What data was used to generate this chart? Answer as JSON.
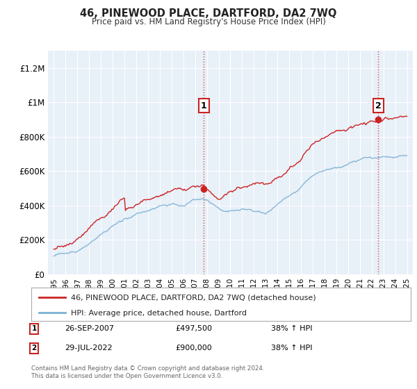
{
  "title": "46, PINEWOOD PLACE, DARTFORD, DA2 7WQ",
  "subtitle": "Price paid vs. HM Land Registry's House Price Index (HPI)",
  "hpi_color": "#7ab0d4",
  "price_color": "#cc2222",
  "dashed_color": "#cc2222",
  "background_color": "#ffffff",
  "plot_bg_color": "#e8f0f8",
  "grid_color": "#ffffff",
  "ylim": [
    0,
    1300000
  ],
  "yticks": [
    0,
    200000,
    400000,
    600000,
    800000,
    1000000,
    1200000
  ],
  "ytick_labels": [
    "£0",
    "£200K",
    "£400K",
    "£600K",
    "£800K",
    "£1M",
    "£1.2M"
  ],
  "legend_entries": [
    "46, PINEWOOD PLACE, DARTFORD, DA2 7WQ (detached house)",
    "HPI: Average price, detached house, Dartford"
  ],
  "annotation1": {
    "label": "1",
    "date_x": 2007.75,
    "price_y": 497500,
    "text_date": "26-SEP-2007",
    "text_price": "£497,500",
    "text_change": "38% ↑ HPI"
  },
  "annotation2": {
    "label": "2",
    "date_x": 2022.57,
    "price_y": 900000,
    "text_date": "29-JUL-2022",
    "text_price": "£900,000",
    "text_change": "38% ↑ HPI"
  },
  "footer": "Contains HM Land Registry data © Crown copyright and database right 2024.\nThis data is licensed under the Open Government Licence v3.0.",
  "xlim": [
    1994.5,
    2025.5
  ]
}
